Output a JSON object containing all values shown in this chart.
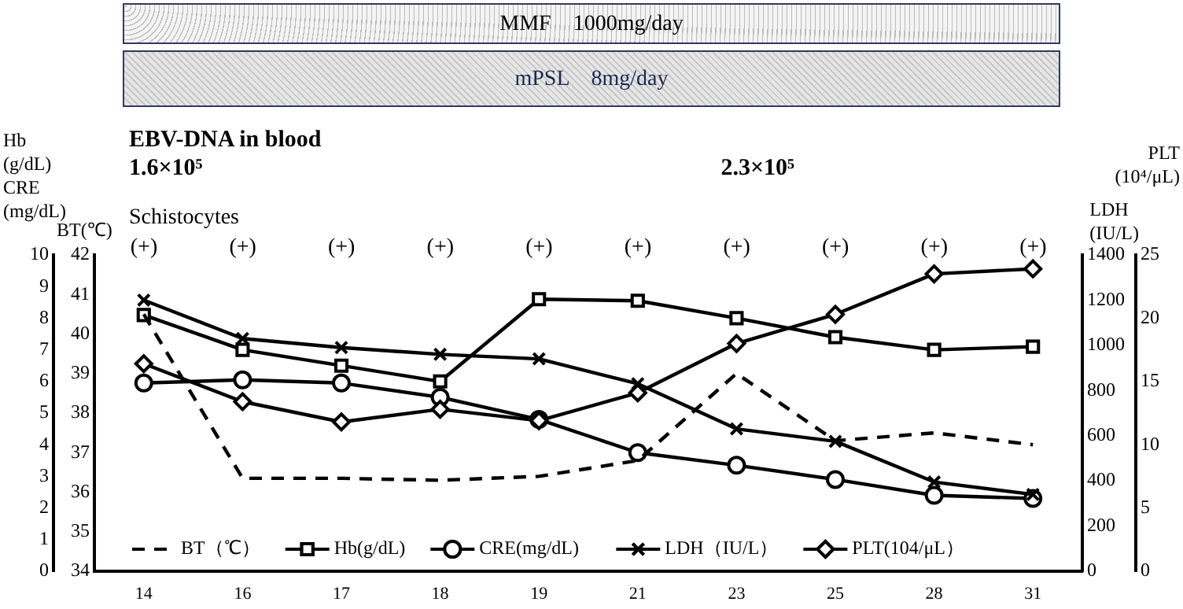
{
  "chart_data": [
    {
      "type": "line",
      "categories": [
        "14",
        "16",
        "17",
        "18",
        "19",
        "21",
        "23",
        "25",
        "28",
        "31"
      ],
      "series": [
        {
          "name": "BT（℃）",
          "color": "#000000",
          "axis": "y2",
          "marker": "none",
          "line_style": "dashed",
          "values": [
            40.5,
            36.35,
            36.35,
            36.3,
            36.4,
            36.8,
            39.0,
            37.3,
            37.5,
            37.2
          ]
        },
        {
          "name": "Hb(g/dL)",
          "color": "#000000",
          "marker": "square",
          "line_style": "solid",
          "values": [
            8.1,
            7.0,
            6.5,
            6.0,
            8.6,
            8.55,
            8.0,
            7.4,
            7.0,
            7.1
          ]
        },
        {
          "name": "CRE(mg/dL)",
          "color": "#000000",
          "marker": "circle",
          "line_style": "solid",
          "values": [
            5.95,
            6.05,
            5.95,
            5.5,
            4.8,
            3.75,
            3.35,
            2.9,
            2.4,
            2.3
          ]
        }
      ],
      "ylabel": "Hb (g/dL) CRE (mg/dL)",
      "y2label": "BT(℃)",
      "ylim": [
        0,
        10
      ],
      "yticks": [
        0,
        1,
        2,
        3,
        4,
        5,
        6,
        7,
        8,
        9,
        10
      ],
      "y2lim": [
        34,
        42
      ],
      "y2ticks": [
        34,
        35,
        36,
        37,
        38,
        39,
        40,
        41,
        42
      ],
      "grid": false,
      "legend": "bottom",
      "annotations": [
        "MMF　1000mg/day",
        "mPSL　8mg/day",
        "EBV-DNA in blood",
        "1.6×10⁵",
        "2.3×10⁵",
        "Schistocytes",
        "(+)",
        "(+)",
        "(+)",
        "(+)",
        "(+)",
        "(+)",
        "(+)",
        "(+)",
        "(+)",
        "(+)"
      ]
    },
    {
      "type": "line",
      "categories": [
        "14",
        "16",
        "17",
        "18",
        "19",
        "21",
        "23",
        "25",
        "28",
        "31"
      ],
      "series": [
        {
          "name": "LDH（IU/L）",
          "color": "#000000",
          "marker": "cross",
          "line_style": "solid",
          "values": [
            1200,
            1030,
            990,
            960,
            940,
            830,
            630,
            575,
            395,
            340
          ]
        },
        {
          "name": "PLT(104/μL）",
          "color": "#000000",
          "axis": "y2",
          "marker": "diamond",
          "line_style": "solid",
          "values": [
            16.4,
            13.4,
            11.8,
            12.8,
            11.9,
            14.1,
            18.0,
            20.3,
            23.5,
            23.9
          ]
        }
      ],
      "ylabel": "LDH (IU/L)",
      "y2label": "PLT (10⁴/μL)",
      "ylim": [
        0,
        1400
      ],
      "yticks": [
        0,
        200,
        400,
        600,
        800,
        1000,
        1200,
        1400
      ],
      "y2lim": [
        0,
        25
      ],
      "y2ticks": [
        0,
        5,
        10,
        15,
        20,
        25
      ],
      "grid": false,
      "legend": "bottom right",
      "tick_labels": "y"
    }
  ]
}
